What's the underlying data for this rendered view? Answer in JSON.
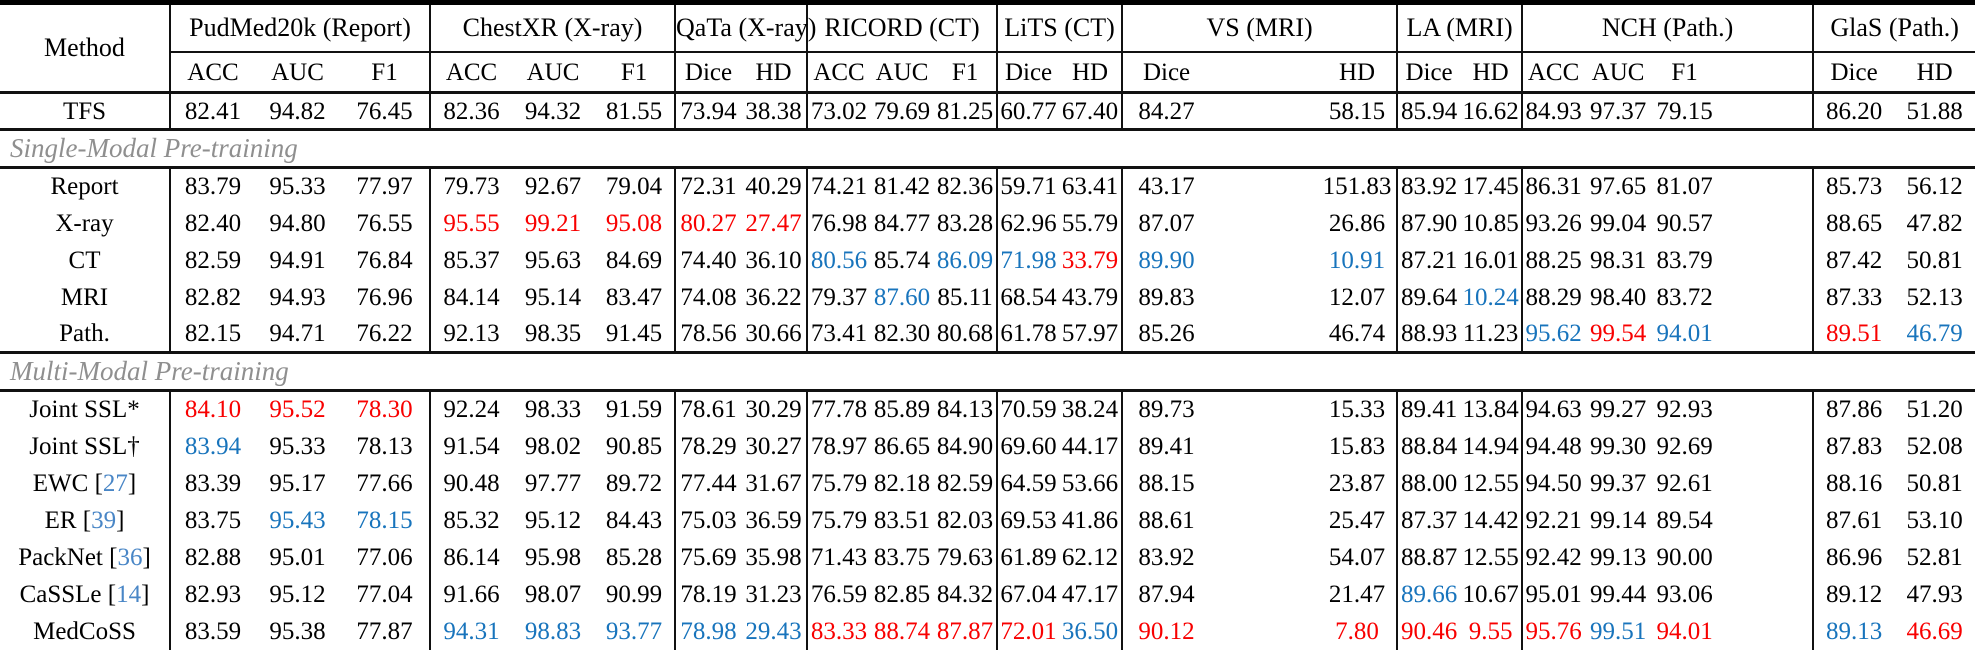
{
  "palette": {
    "best_red": "#f80000",
    "second_blue": "#1874bc",
    "citation_blue": "#4986c6",
    "section_gray": "#8f8f8f",
    "text_black": "#000000"
  },
  "brackets": {
    "open": " [",
    "close": "]"
  },
  "table": {
    "method_header": "Method",
    "groups": [
      {
        "label": "PudMed20k (Report)",
        "cols": [
          "ACC",
          "AUC",
          "F1"
        ]
      },
      {
        "label": "ChestXR (X-ray)",
        "cols": [
          "ACC",
          "AUC",
          "F1"
        ]
      },
      {
        "label": "QaTa (X-ray)",
        "cols": [
          "Dice",
          "HD"
        ]
      },
      {
        "label": "RICORD (CT)",
        "cols": [
          "ACC",
          "AUC",
          "F1"
        ]
      },
      {
        "label": "LiTS (CT)",
        "cols": [
          "Dice",
          "HD"
        ]
      },
      {
        "label": "VS (MRI)",
        "cols": [
          "Dice",
          "HD"
        ]
      },
      {
        "label": "LA (MRI)",
        "cols": [
          "Dice",
          "HD"
        ]
      },
      {
        "label": "NCH (Path.)",
        "cols": [
          "ACC",
          "AUC",
          "F1"
        ]
      },
      {
        "label": "GlaS (Path.)",
        "cols": [
          "Dice",
          "HD"
        ]
      }
    ],
    "rows": [
      {
        "type": "data",
        "method": "TFS",
        "values": [
          "82.41",
          "94.82",
          "76.45",
          "82.36",
          "94.32",
          "81.55",
          "73.94",
          "38.38",
          "73.02",
          "79.69",
          "81.25",
          "60.77",
          "67.40",
          "84.27",
          "58.15",
          "85.94",
          "16.62",
          "84.93",
          "97.37",
          "79.15",
          "86.20",
          "51.88"
        ],
        "colors": [
          "",
          "",
          "",
          "",
          "",
          "",
          "",
          "",
          "",
          "",
          "",
          "",
          "",
          "",
          "",
          "",
          "",
          "",
          "",
          "",
          "",
          ""
        ]
      },
      {
        "type": "section",
        "label": "Single-Modal Pre-training"
      },
      {
        "type": "data",
        "method": "Report",
        "values": [
          "83.79",
          "95.33",
          "77.97",
          "79.73",
          "92.67",
          "79.04",
          "72.31",
          "40.29",
          "74.21",
          "81.42",
          "82.36",
          "59.71",
          "63.41",
          "43.17",
          "151.83",
          "83.92",
          "17.45",
          "86.31",
          "97.65",
          "81.07",
          "85.73",
          "56.12"
        ],
        "colors": [
          "",
          "",
          "",
          "",
          "",
          "",
          "",
          "",
          "",
          "",
          "",
          "",
          "",
          "",
          "",
          "",
          "",
          "",
          "",
          "",
          "",
          ""
        ]
      },
      {
        "type": "data",
        "method": "X-ray",
        "values": [
          "82.40",
          "94.80",
          "76.55",
          "95.55",
          "99.21",
          "95.08",
          "80.27",
          "27.47",
          "76.98",
          "84.77",
          "83.28",
          "62.96",
          "55.79",
          "87.07",
          "26.86",
          "87.90",
          "10.85",
          "93.26",
          "99.04",
          "90.57",
          "88.65",
          "47.82"
        ],
        "colors": [
          "",
          "",
          "",
          "r",
          "r",
          "r",
          "r",
          "r",
          "",
          "",
          "",
          "",
          "",
          "",
          "",
          "",
          "",
          "",
          "",
          "",
          "",
          ""
        ]
      },
      {
        "type": "data",
        "method": "CT",
        "values": [
          "82.59",
          "94.91",
          "76.84",
          "85.37",
          "95.63",
          "84.69",
          "74.40",
          "36.10",
          "80.56",
          "85.74",
          "86.09",
          "71.98",
          "33.79",
          "89.90",
          "10.91",
          "87.21",
          "16.01",
          "88.25",
          "98.31",
          "83.79",
          "87.42",
          "50.81"
        ],
        "colors": [
          "",
          "",
          "",
          "",
          "",
          "",
          "",
          "",
          "b",
          "",
          "b",
          "b",
          "r",
          "b",
          "b",
          "",
          "",
          "",
          "",
          "",
          "",
          ""
        ]
      },
      {
        "type": "data",
        "method": "MRI",
        "values": [
          "82.82",
          "94.93",
          "76.96",
          "84.14",
          "95.14",
          "83.47",
          "74.08",
          "36.22",
          "79.37",
          "87.60",
          "85.11",
          "68.54",
          "43.79",
          "89.83",
          "12.07",
          "89.64",
          "10.24",
          "88.29",
          "98.40",
          "83.72",
          "87.33",
          "52.13"
        ],
        "colors": [
          "",
          "",
          "",
          "",
          "",
          "",
          "",
          "",
          "",
          "b",
          "",
          "",
          "",
          "",
          "",
          "",
          "b",
          "",
          "",
          "",
          "",
          ""
        ]
      },
      {
        "type": "data",
        "method": "Path.",
        "values": [
          "82.15",
          "94.71",
          "76.22",
          "92.13",
          "98.35",
          "91.45",
          "78.56",
          "30.66",
          "73.41",
          "82.30",
          "80.68",
          "61.78",
          "57.97",
          "85.26",
          "46.74",
          "88.93",
          "11.23",
          "95.62",
          "99.54",
          "94.01",
          "89.51",
          "46.79"
        ],
        "colors": [
          "",
          "",
          "",
          "",
          "",
          "",
          "",
          "",
          "",
          "",
          "",
          "",
          "",
          "",
          "",
          "",
          "",
          "b",
          "r",
          "b",
          "r",
          "b"
        ]
      },
      {
        "type": "section",
        "label": "Multi-Modal Pre-training"
      },
      {
        "type": "data",
        "method": "Joint SSL*",
        "values": [
          "84.10",
          "95.52",
          "78.30",
          "92.24",
          "98.33",
          "91.59",
          "78.61",
          "30.29",
          "77.78",
          "85.89",
          "84.13",
          "70.59",
          "38.24",
          "89.73",
          "15.33",
          "89.41",
          "13.84",
          "94.63",
          "99.27",
          "92.93",
          "87.86",
          "51.20"
        ],
        "colors": [
          "r",
          "r",
          "r",
          "",
          "",
          "",
          "",
          "",
          "",
          "",
          "",
          "",
          "",
          "",
          "",
          "",
          "",
          "",
          "",
          "",
          "",
          ""
        ]
      },
      {
        "type": "data",
        "method": "Joint SSL†",
        "values": [
          "83.94",
          "95.33",
          "78.13",
          "91.54",
          "98.02",
          "90.85",
          "78.29",
          "30.27",
          "78.97",
          "86.65",
          "84.90",
          "69.60",
          "44.17",
          "89.41",
          "15.83",
          "88.84",
          "14.94",
          "94.48",
          "99.30",
          "92.69",
          "87.83",
          "52.08"
        ],
        "colors": [
          "b",
          "",
          "",
          "",
          "",
          "",
          "",
          "",
          "",
          "",
          "",
          "",
          "",
          "",
          "",
          "",
          "",
          "",
          "",
          "",
          "",
          ""
        ]
      },
      {
        "type": "data",
        "method": "EWC",
        "cite": "27",
        "values": [
          "83.39",
          "95.17",
          "77.66",
          "90.48",
          "97.77",
          "89.72",
          "77.44",
          "31.67",
          "75.79",
          "82.18",
          "82.59",
          "64.59",
          "53.66",
          "88.15",
          "23.87",
          "88.00",
          "12.55",
          "94.50",
          "99.37",
          "92.61",
          "88.16",
          "50.81"
        ],
        "colors": [
          "",
          "",
          "",
          "",
          "",
          "",
          "",
          "",
          "",
          "",
          "",
          "",
          "",
          "",
          "",
          "",
          "",
          "",
          "",
          "",
          "",
          ""
        ]
      },
      {
        "type": "data",
        "method": "ER",
        "cite": "39",
        "values": [
          "83.75",
          "95.43",
          "78.15",
          "85.32",
          "95.12",
          "84.43",
          "75.03",
          "36.59",
          "75.79",
          "83.51",
          "82.03",
          "69.53",
          "41.86",
          "88.61",
          "25.47",
          "87.37",
          "14.42",
          "92.21",
          "99.14",
          "89.54",
          "87.61",
          "53.10"
        ],
        "colors": [
          "",
          "b",
          "b",
          "",
          "",
          "",
          "",
          "",
          "",
          "",
          "",
          "",
          "",
          "",
          "",
          "",
          "",
          "",
          "",
          "",
          "",
          ""
        ]
      },
      {
        "type": "data",
        "method": "PackNet",
        "cite": "36",
        "values": [
          "82.88",
          "95.01",
          "77.06",
          "86.14",
          "95.98",
          "85.28",
          "75.69",
          "35.98",
          "71.43",
          "83.75",
          "79.63",
          "61.89",
          "62.12",
          "83.92",
          "54.07",
          "88.87",
          "12.55",
          "92.42",
          "99.13",
          "90.00",
          "86.96",
          "52.81"
        ],
        "colors": [
          "",
          "",
          "",
          "",
          "",
          "",
          "",
          "",
          "",
          "",
          "",
          "",
          "",
          "",
          "",
          "",
          "",
          "",
          "",
          "",
          "",
          ""
        ]
      },
      {
        "type": "data",
        "method": "CaSSLe",
        "cite": "14",
        "values": [
          "82.93",
          "95.12",
          "77.04",
          "91.66",
          "98.07",
          "90.99",
          "78.19",
          "31.23",
          "76.59",
          "82.85",
          "84.32",
          "67.04",
          "47.17",
          "87.94",
          "21.47",
          "89.66",
          "10.67",
          "95.01",
          "99.44",
          "93.06",
          "89.12",
          "47.93"
        ],
        "colors": [
          "",
          "",
          "",
          "",
          "",
          "",
          "",
          "",
          "",
          "",
          "",
          "",
          "",
          "",
          "",
          "b",
          "",
          "",
          "",
          "",
          "",
          ""
        ]
      },
      {
        "type": "data",
        "method": "MedCoSS",
        "values": [
          "83.59",
          "95.38",
          "77.87",
          "94.31",
          "98.83",
          "93.77",
          "78.98",
          "29.43",
          "83.33",
          "88.74",
          "87.87",
          "72.01",
          "36.50",
          "90.12",
          "7.80",
          "90.46",
          "9.55",
          "95.76",
          "99.51",
          "94.01",
          "89.13",
          "46.69"
        ],
        "colors": [
          "",
          "",
          "",
          "b",
          "b",
          "b",
          "b",
          "b",
          "r",
          "r",
          "r",
          "r",
          "b",
          "r",
          "r",
          "r",
          "r",
          "r",
          "b",
          "r",
          "b",
          "r"
        ]
      }
    ]
  }
}
